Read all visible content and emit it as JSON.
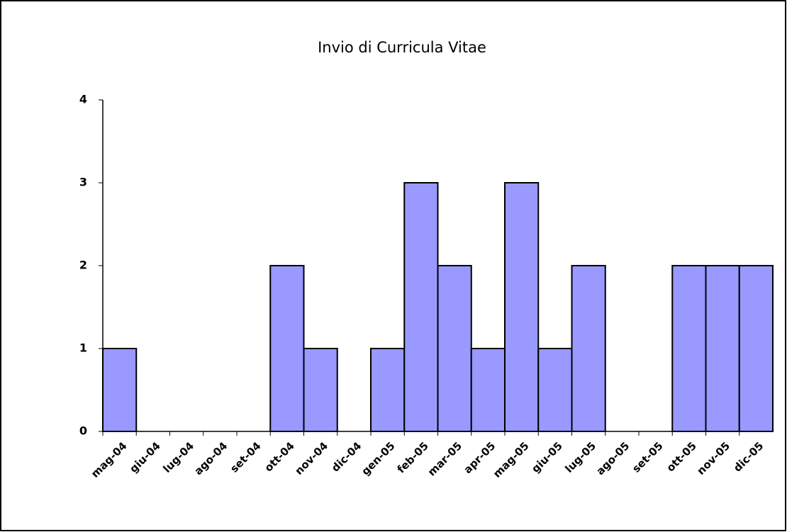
{
  "chart_data": {
    "type": "bar",
    "title": "Invio di Curricula Vitae",
    "categories": [
      "mag-04",
      "giu-04",
      "lug-04",
      "ago-04",
      "set-04",
      "ott-04",
      "nov-04",
      "dic-04",
      "gen-05",
      "feb-05",
      "mar-05",
      "apr-05",
      "mag-05",
      "giu-05",
      "lug-05",
      "ago-05",
      "set-05",
      "ott-05",
      "nov-05",
      "dic-05"
    ],
    "values": [
      1,
      0,
      0,
      0,
      0,
      2,
      1,
      0,
      1,
      3,
      2,
      1,
      3,
      1,
      2,
      0,
      0,
      2,
      2,
      2
    ],
    "color": "#9999ff",
    "ylim": [
      0,
      4
    ],
    "yticks": [
      0,
      1,
      2,
      3,
      4
    ],
    "grid": false
  }
}
